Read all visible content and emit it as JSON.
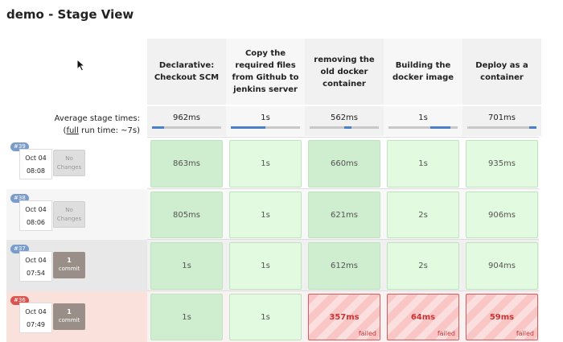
{
  "title": "demo - Stage View",
  "stages": [
    {
      "label": "Declarative: Checkout SCM",
      "avg": "962ms",
      "bar": {
        "start": 0.0,
        "end": 0.18
      }
    },
    {
      "label": "Copy the required files from Github to jenkins server",
      "avg": "1s",
      "bar": {
        "start": 0.0,
        "end": 0.5
      }
    },
    {
      "label": "removing the old docker container",
      "avg": "562ms",
      "bar": {
        "start": 0.5,
        "end": 0.6
      }
    },
    {
      "label": "Building the docker image",
      "avg": "1s",
      "bar": {
        "start": 0.6,
        "end": 0.9
      }
    },
    {
      "label": "Deploy as a container",
      "avg": "701ms",
      "bar": {
        "start": 0.9,
        "end": 1.0
      }
    }
  ],
  "avg_label": "Average stage times:",
  "run_prefix": "(",
  "run_link": "full",
  "run_suffix": " run time: ~7s)",
  "builds": [
    {
      "id": "#39",
      "date": "Oct 04",
      "time": "08:08",
      "changes": {
        "type": "none",
        "line1": "No",
        "line2": "Changes"
      },
      "cells": [
        {
          "v": "863ms"
        },
        {
          "v": "1s"
        },
        {
          "v": "660ms"
        },
        {
          "v": "1s"
        },
        {
          "v": "935ms"
        }
      ]
    },
    {
      "id": "#38",
      "date": "Oct 04",
      "time": "08:06",
      "changes": {
        "type": "none",
        "line1": "No",
        "line2": "Changes"
      },
      "cells": [
        {
          "v": "805ms"
        },
        {
          "v": "1s"
        },
        {
          "v": "621ms"
        },
        {
          "v": "2s"
        },
        {
          "v": "906ms"
        }
      ]
    },
    {
      "id": "#37",
      "date": "Oct 04",
      "time": "07:54",
      "changes": {
        "type": "commit",
        "line1": "1",
        "line2": "commit"
      },
      "cells": [
        {
          "v": "1s"
        },
        {
          "v": "1s"
        },
        {
          "v": "612ms"
        },
        {
          "v": "2s"
        },
        {
          "v": "904ms"
        }
      ]
    },
    {
      "id": "#36",
      "date": "Oct 04",
      "time": "07:49",
      "changes": {
        "type": "commit",
        "line1": "1",
        "line2": "commit"
      },
      "cells": [
        {
          "v": "1s"
        },
        {
          "v": "1s"
        },
        {
          "v": "357ms",
          "status": "failed"
        },
        {
          "v": "64ms",
          "status": "failed"
        },
        {
          "v": "59ms",
          "status": "failed"
        }
      ]
    }
  ]
}
